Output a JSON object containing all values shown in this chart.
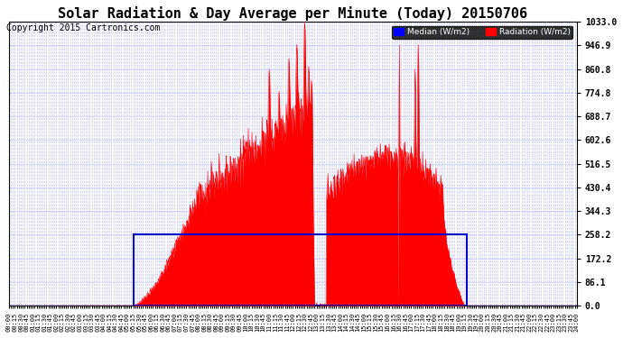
{
  "title": "Solar Radiation & Day Average per Minute (Today) 20150706",
  "copyright": "Copyright 2015 Cartronics.com",
  "y_max": 1033.0,
  "y_min": 0.0,
  "y_ticks": [
    0.0,
    86.1,
    172.2,
    258.2,
    344.3,
    430.4,
    516.5,
    602.6,
    688.7,
    774.8,
    860.8,
    946.9,
    1033.0
  ],
  "legend_median_label": "Median (W/m2)",
  "legend_radiation_label": "Radiation (W/m2)",
  "median_color": "#0000ff",
  "radiation_color": "#ff0000",
  "background_color": "#ffffff",
  "plot_bg_color": "#ffffff",
  "grid_color": "#aaaaff",
  "box_color": "#0000cc",
  "title_fontsize": 11,
  "copyright_fontsize": 7,
  "minutes_per_day": 1440,
  "x_tick_interval": 5,
  "figwidth": 6.9,
  "figheight": 3.75,
  "dpi": 100
}
